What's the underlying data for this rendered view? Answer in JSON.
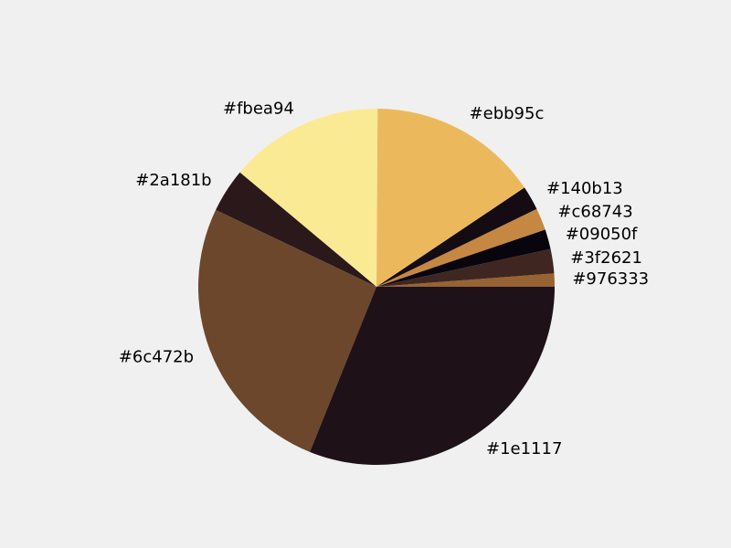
{
  "chart_data": {
    "type": "pie",
    "start_angle": 0,
    "direction": "counterclockwise",
    "slices": [
      {
        "label": "#976333",
        "value": 1.2,
        "color": "#976333"
      },
      {
        "label": "#3f2621",
        "value": 2.2,
        "color": "#3f2621"
      },
      {
        "label": "#09050f",
        "value": 1.8,
        "color": "#09050f"
      },
      {
        "label": "#c68743",
        "value": 2.0,
        "color": "#c68743"
      },
      {
        "label": "#140b13",
        "value": 2.2,
        "color": "#140b13"
      },
      {
        "label": "#ebb95c",
        "value": 15.5,
        "color": "#ebb95c"
      },
      {
        "label": "#fbea94",
        "value": 14.0,
        "color": "#fbea94"
      },
      {
        "label": "#2a181b",
        "value": 4.0,
        "color": "#2a181b"
      },
      {
        "label": "#6c472b",
        "value": 26.0,
        "color": "#6c472b"
      },
      {
        "label": "#1e1117",
        "value": 31.1,
        "color": "#1e1117"
      }
    ]
  }
}
